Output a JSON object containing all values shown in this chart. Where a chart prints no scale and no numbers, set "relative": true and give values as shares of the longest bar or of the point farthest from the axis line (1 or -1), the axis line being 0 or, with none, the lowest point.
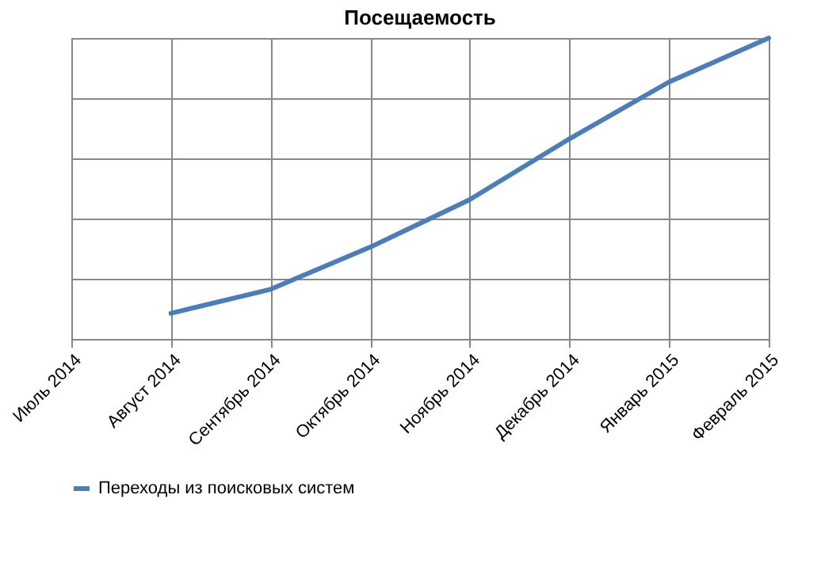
{
  "chart_data": {
    "type": "line",
    "title": "Посещаемость",
    "categories": [
      "Июль 2014",
      "Август 2014",
      "Сентябрь 2014",
      "Октябрь 2014",
      "Ноябрь 2014",
      "Декабрь 2014",
      "Январь 2015",
      "Февраль 2015"
    ],
    "series": [
      {
        "name": "Переходы из поисковых систем",
        "color": "#4a7ebb",
        "values": [
          null,
          0.085,
          0.165,
          0.305,
          0.463,
          0.665,
          0.854,
          1
        ]
      }
    ],
    "relative": true,
    "grid": true,
    "legend": "bottom",
    "marker": "none",
    "line_style": "solid"
  }
}
